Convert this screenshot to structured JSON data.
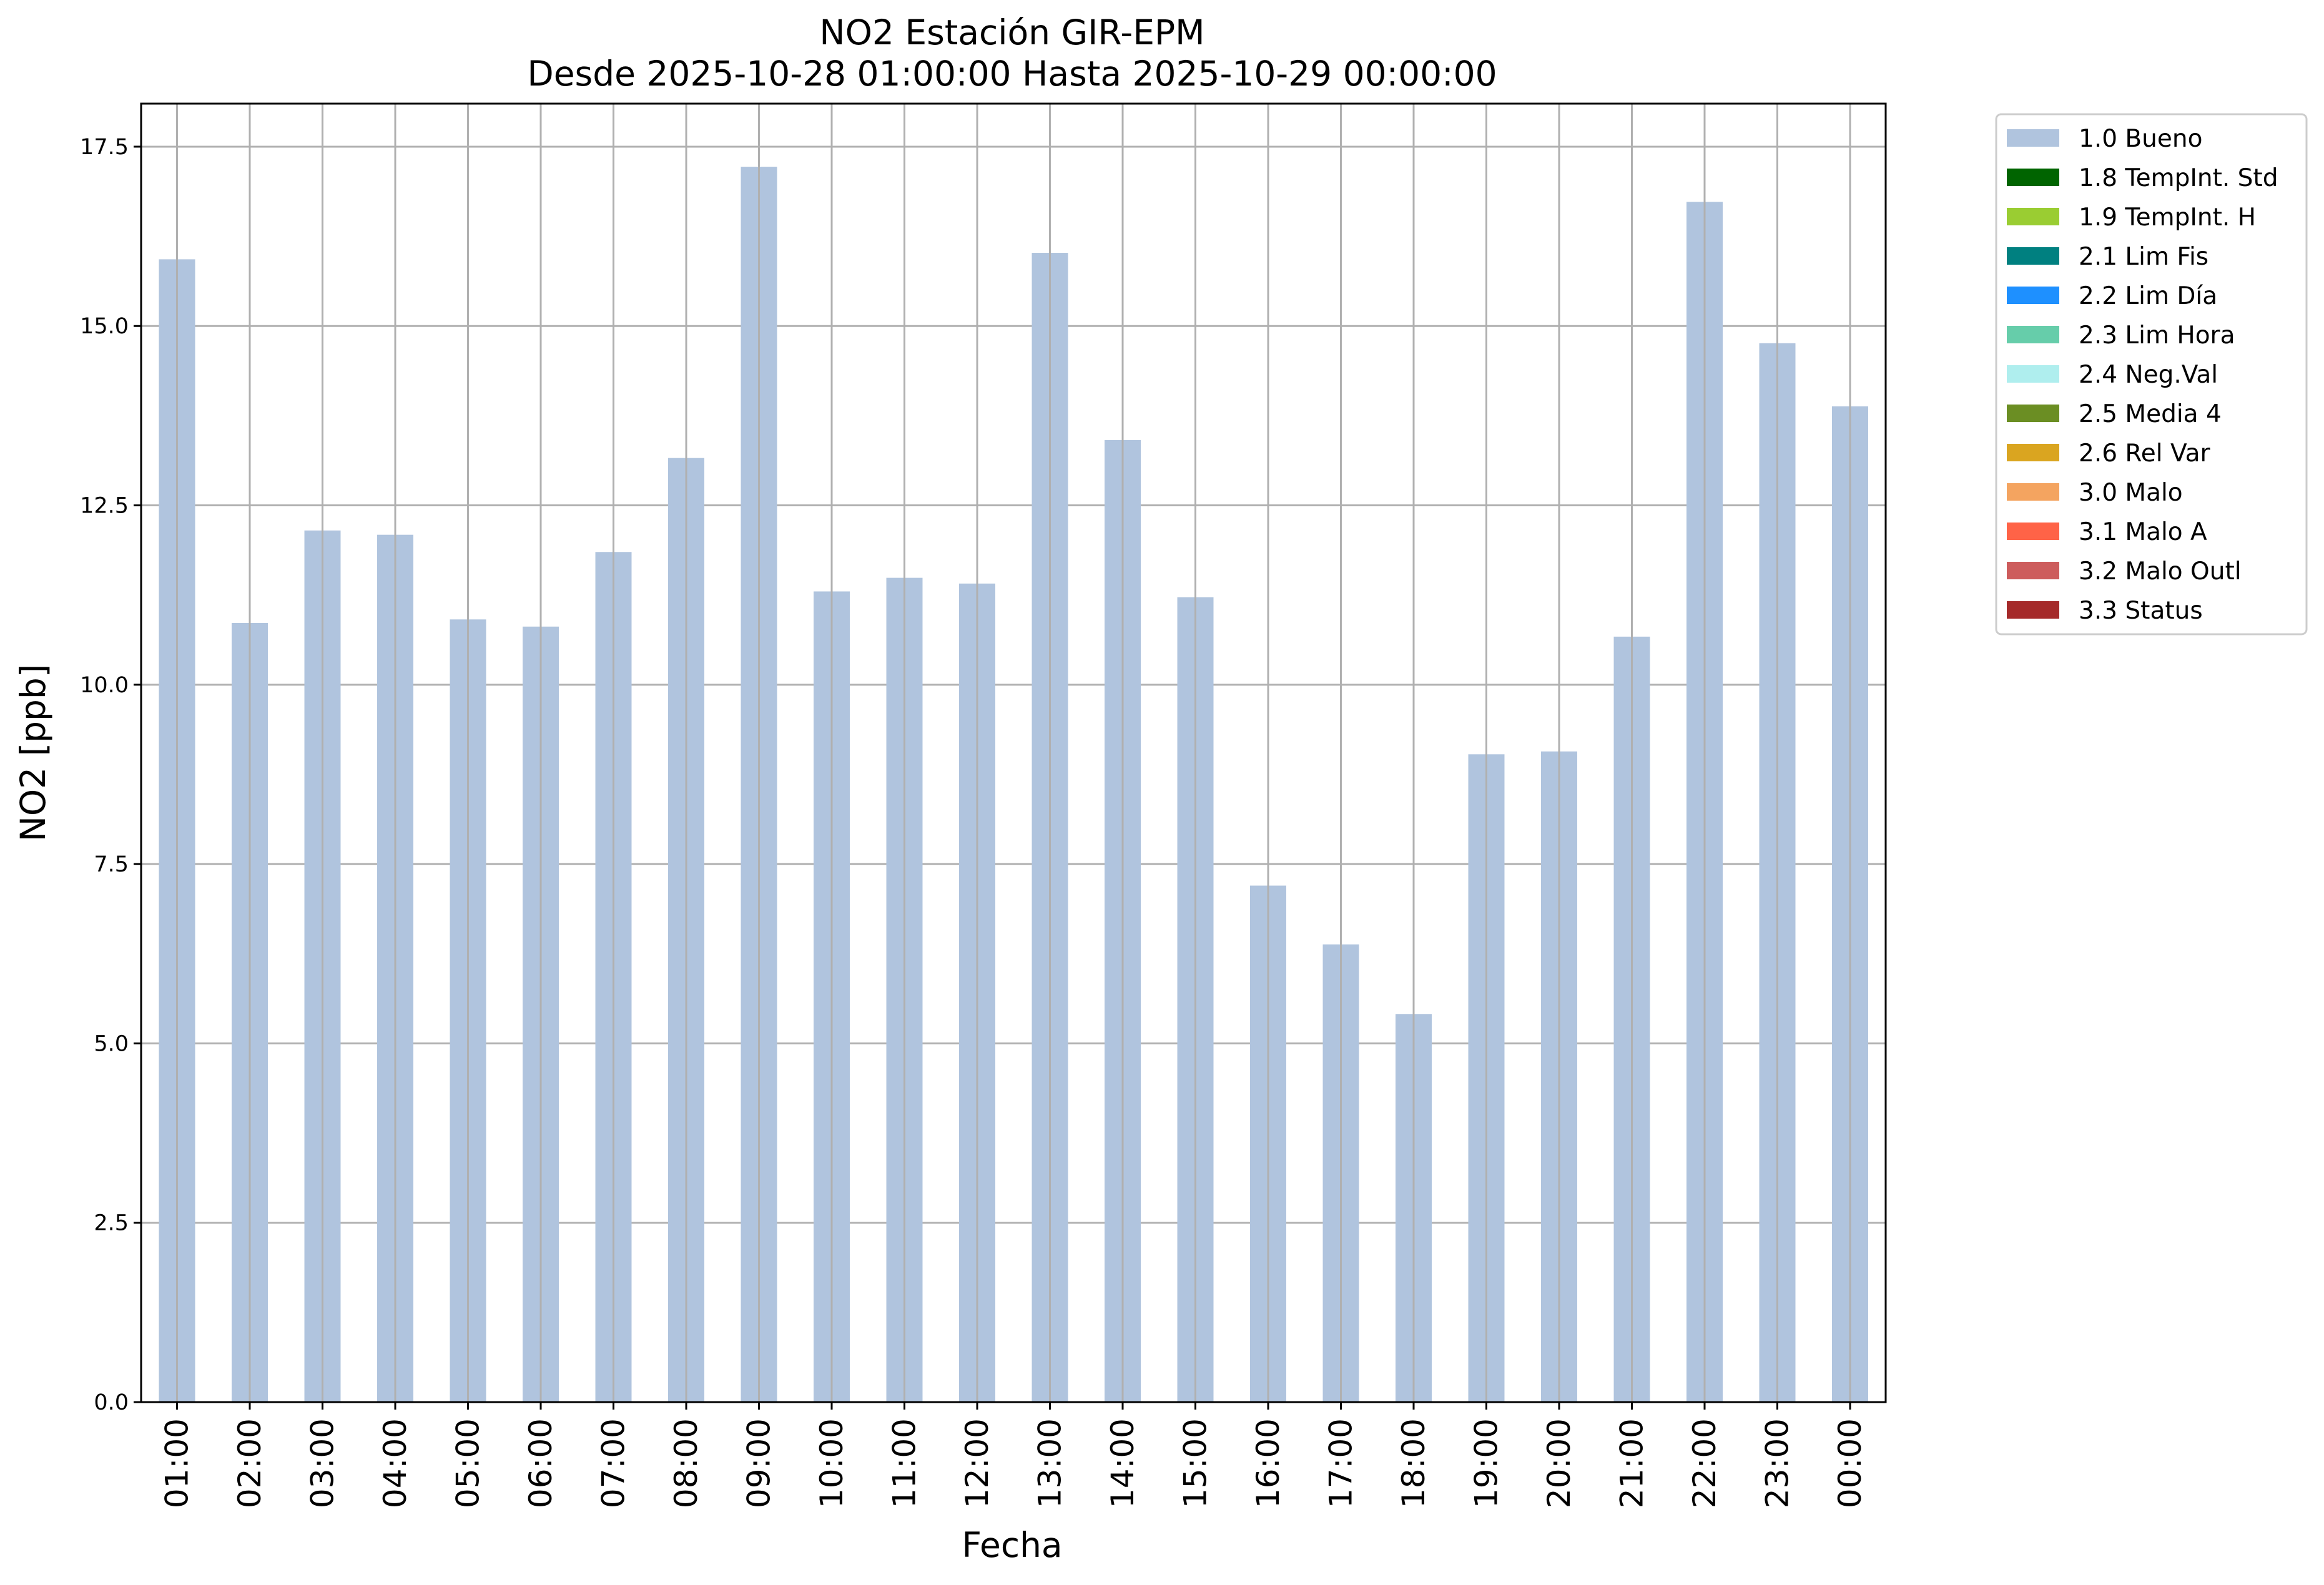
{
  "chart_data": {
    "type": "bar",
    "title": "NO2 Estación GIR-EPM",
    "subtitle": "Desde 2025-10-28 01:00:00 Hasta 2025-10-29 00:00:00",
    "xlabel": "Fecha",
    "ylabel": "NO2 [ppb]",
    "ylim": [
      0,
      18.1
    ],
    "yticks": [
      "0.0",
      "2.5",
      "5.0",
      "7.5",
      "10.0",
      "12.5",
      "15.0",
      "17.5"
    ],
    "grid": true,
    "legend_position": "outside-right",
    "categories": [
      "01:00",
      "02:00",
      "03:00",
      "04:00",
      "05:00",
      "06:00",
      "07:00",
      "08:00",
      "09:00",
      "10:00",
      "11:00",
      "12:00",
      "13:00",
      "14:00",
      "15:00",
      "16:00",
      "17:00",
      "18:00",
      "19:00",
      "20:00",
      "21:00",
      "22:00",
      "23:00",
      "00:00"
    ],
    "series": [
      {
        "name": "1.0 Bueno",
        "color": "#b0c4de",
        "values": [
          15.93,
          10.86,
          12.15,
          12.09,
          10.91,
          10.81,
          11.85,
          13.16,
          17.22,
          11.3,
          11.49,
          11.41,
          16.02,
          13.41,
          11.22,
          7.2,
          6.38,
          5.41,
          9.03,
          9.07,
          10.67,
          16.73,
          14.76,
          13.88
        ]
      }
    ],
    "legend": [
      {
        "label": "1.0 Bueno",
        "color": "#b0c4de"
      },
      {
        "label": "1.8 TempInt. Std",
        "color": "#006400"
      },
      {
        "label": "1.9 TempInt. H",
        "color": "#9acd32"
      },
      {
        "label": "2.1 Lim Fis",
        "color": "#008080"
      },
      {
        "label": "2.2 Lim Día",
        "color": "#1e90ff"
      },
      {
        "label": "2.3 Lim Hora",
        "color": "#66cdaa"
      },
      {
        "label": "2.4 Neg.Val",
        "color": "#afeeee"
      },
      {
        "label": "2.5 Media 4",
        "color": "#6b8e23"
      },
      {
        "label": "2.6 Rel Var",
        "color": "#daa520"
      },
      {
        "label": "3.0 Malo",
        "color": "#f4a460"
      },
      {
        "label": "3.1 Malo A",
        "color": "#ff6347"
      },
      {
        "label": "3.2 Malo Outl",
        "color": "#cd5c5c"
      },
      {
        "label": "3.3 Status",
        "color": "#a52a2a"
      }
    ]
  }
}
